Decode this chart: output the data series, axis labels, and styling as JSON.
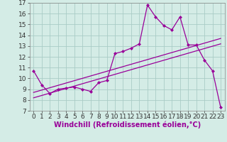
{
  "xlabel": "Windchill (Refroidissement éolien,°C)",
  "background_color": "#d4ece6",
  "grid_color": "#aaccc6",
  "line_color": "#990099",
  "xlim": [
    -0.5,
    23.5
  ],
  "ylim": [
    7,
    17
  ],
  "xticks": [
    0,
    1,
    2,
    3,
    4,
    5,
    6,
    7,
    8,
    9,
    10,
    11,
    12,
    13,
    14,
    15,
    16,
    17,
    18,
    19,
    20,
    21,
    22,
    23
  ],
  "yticks": [
    7,
    8,
    9,
    10,
    11,
    12,
    13,
    14,
    15,
    16,
    17
  ],
  "curve1_x": [
    0,
    1,
    2,
    3,
    4,
    5,
    6,
    7,
    8,
    9,
    10,
    11,
    12,
    13,
    14,
    15,
    16,
    17,
    18,
    19,
    20,
    21,
    22,
    23
  ],
  "curve1_y": [
    10.7,
    9.4,
    8.6,
    9.0,
    9.1,
    9.2,
    9.0,
    8.8,
    9.6,
    9.8,
    12.3,
    12.5,
    12.8,
    13.2,
    16.8,
    15.7,
    14.9,
    14.5,
    15.7,
    13.1,
    13.1,
    11.7,
    10.7,
    7.3
  ],
  "curve2_x": [
    0,
    23
  ],
  "curve2_y": [
    8.7,
    13.7
  ],
  "curve3_x": [
    0,
    23
  ],
  "curve3_y": [
    8.2,
    13.2
  ],
  "font_size_label": 7,
  "font_size_tick": 6.5
}
